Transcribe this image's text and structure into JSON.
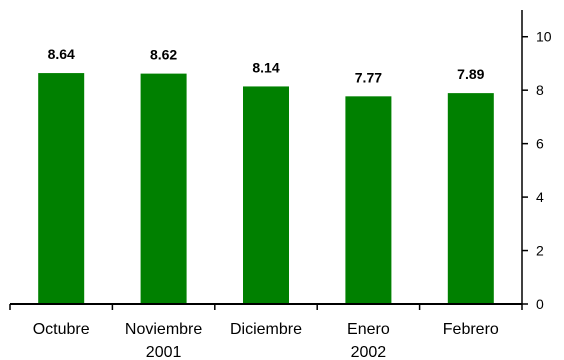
{
  "chart_data": {
    "type": "bar",
    "categories": [
      "Octubre",
      "Noviembre",
      "Diciembre",
      "Enero",
      "Febrero"
    ],
    "year_labels": [
      "2001",
      "2002"
    ],
    "values": [
      8.64,
      8.62,
      8.14,
      7.77,
      7.89
    ],
    "value_labels": [
      "8.64",
      "8.62",
      "8.14",
      "7.77",
      "7.89"
    ],
    "title": "",
    "xlabel": "",
    "ylabel": "",
    "ylim": [
      0,
      11
    ],
    "yticks": [
      0,
      2,
      4,
      6,
      8,
      10
    ],
    "y_axis_side": "right",
    "grid": false,
    "bar_color": "#008000"
  }
}
